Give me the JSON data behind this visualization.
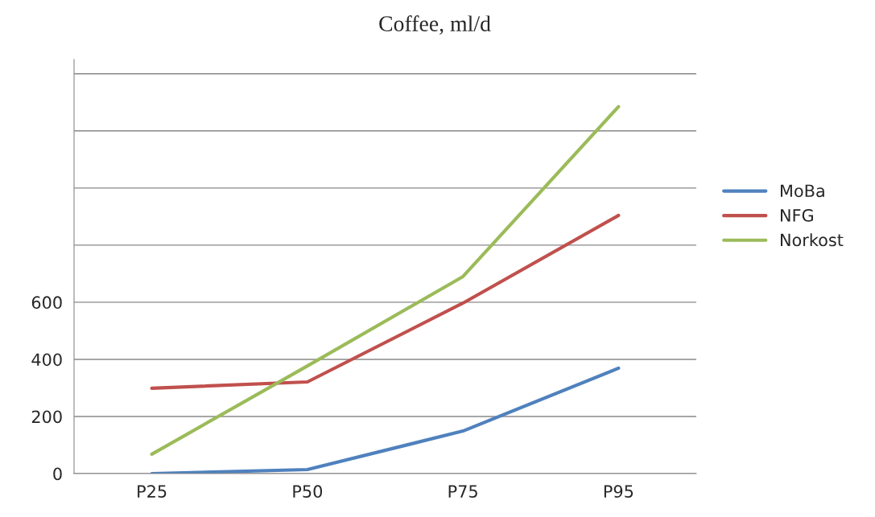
{
  "chart_data": {
    "type": "line",
    "title": "Coffee, ml/d",
    "categories": [
      "P25",
      "P50",
      "P75",
      "P95"
    ],
    "series": [
      {
        "name": "MoBa",
        "color": "#4f81bd",
        "values": [
          0,
          14,
          149,
          369
        ]
      },
      {
        "name": "NFG",
        "color": "#c0504d",
        "values": [
          299,
          321,
          597,
          904
        ]
      },
      {
        "name": "Norkost",
        "color": "#9bbb59",
        "values": [
          68,
          377,
          690,
          1285
        ]
      }
    ],
    "ylim": [
      0,
      1450
    ],
    "yticks": [
      0,
      200,
      400,
      600,
      {
        "value": 800,
        "label": null
      },
      {
        "value": 1000,
        "label": null
      },
      {
        "value": 1200,
        "label": null
      },
      {
        "value": 1400,
        "label": null
      }
    ],
    "grid": "y",
    "legend": "right",
    "marker": "none"
  }
}
